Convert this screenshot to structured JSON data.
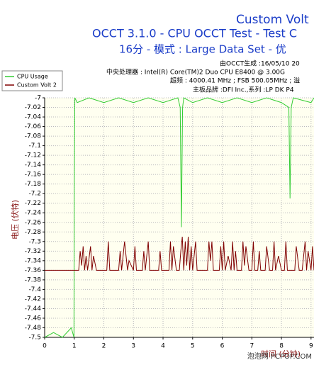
{
  "chart_data": {
    "type": "line",
    "title": "Custom Volt",
    "subtitle": "OCCT 3.1.0 - CPU OCCT Test - Test C",
    "subtitle2": "16分 - 模式 : Large Data Set - 优",
    "annotations": [
      "由OCCT生成 :16/05/10 20",
      "中央处理器 : Intel(R) Core(TM)2 Duo CPU E8400 @ 3.00G",
      "超频 : 4000.41 MHz ; FSB 500.05MHz ; 溢",
      "主板品牌 :DFI Inc.,系列 :LP DK P4"
    ],
    "ylabel": "电压 (伏特)",
    "xlabel": "时间 (分钟)",
    "watermark": "泡泡网 PCPOP.COM",
    "xlim": [
      0,
      9.1
    ],
    "ylim": [
      -7.5,
      -7
    ],
    "xticks": [
      0,
      1,
      2,
      3,
      4,
      5,
      6,
      7,
      8,
      9
    ],
    "yticks": [
      -7,
      -7.02,
      -7.04,
      -7.06,
      -7.08,
      -7.1,
      -7.12,
      -7.14,
      -7.16,
      -7.18,
      -7.2,
      -7.22,
      -7.24,
      -7.26,
      -7.28,
      -7.3,
      -7.32,
      -7.34,
      -7.36,
      -7.38,
      -7.4,
      -7.42,
      -7.44,
      -7.46,
      -7.48,
      -7.5
    ],
    "grid": true,
    "legend": "upper-left",
    "series": [
      {
        "name": "CPU Usage",
        "color": "#33cc33",
        "x": [
          0,
          0.3,
          0.6,
          0.9,
          0.99,
          1.0,
          1.02,
          1.1,
          1.5,
          2.0,
          2.5,
          3.0,
          3.5,
          4.0,
          4.5,
          4.58,
          4.62,
          4.66,
          4.7,
          5.0,
          5.5,
          6.0,
          6.5,
          7.0,
          7.5,
          8.0,
          8.25,
          8.29,
          8.33,
          8.4,
          9.0,
          9.1
        ],
        "values": [
          -7.5,
          -7.49,
          -7.5,
          -7.48,
          -7.5,
          -7.2,
          -7.0,
          -7.01,
          -7.0,
          -7.01,
          -7.0,
          -7.01,
          -7.0,
          -7.01,
          -7.0,
          -7.02,
          -7.27,
          -7.02,
          -7.0,
          -7.01,
          -7.0,
          -7.01,
          -7.0,
          -7.01,
          -7.0,
          -7.01,
          -7.02,
          -7.21,
          -7.02,
          -7.0,
          -7.01,
          -7.0
        ]
      },
      {
        "name": "Custom Volt 2",
        "color": "#800000",
        "x": [
          0,
          1.15,
          1.2,
          1.25,
          1.3,
          1.35,
          1.4,
          1.45,
          1.55,
          1.6,
          1.65,
          1.75,
          2.1,
          2.15,
          2.2,
          2.5,
          2.55,
          2.6,
          2.7,
          2.8,
          2.85,
          3.0,
          3.05,
          3.1,
          3.3,
          3.35,
          3.4,
          3.5,
          3.55,
          3.85,
          3.9,
          3.95,
          4.2,
          4.25,
          4.3,
          4.35,
          4.45,
          4.55,
          4.6,
          4.65,
          4.7,
          4.75,
          4.8,
          4.85,
          4.9,
          4.95,
          5.0,
          5.1,
          5.15,
          5.2,
          5.5,
          5.55,
          5.6,
          5.65,
          5.7,
          5.9,
          5.95,
          6.0,
          6.05,
          6.1,
          6.2,
          6.3,
          6.35,
          6.4,
          6.45,
          6.5,
          6.65,
          6.7,
          6.75,
          6.8,
          6.9,
          7.0,
          7.05,
          7.1,
          7.2,
          7.25,
          7.3,
          7.45,
          7.5,
          7.6,
          7.7,
          7.75,
          7.8,
          7.9,
          8.0,
          8.1,
          8.15,
          8.2,
          8.45,
          8.5,
          8.6,
          8.7,
          8.8,
          8.85,
          8.9,
          9.0,
          9.05,
          9.1
        ],
        "values": [
          -7.36,
          -7.36,
          -7.32,
          -7.35,
          -7.31,
          -7.36,
          -7.33,
          -7.36,
          -7.31,
          -7.36,
          -7.33,
          -7.36,
          -7.36,
          -7.3,
          -7.36,
          -7.36,
          -7.32,
          -7.36,
          -7.3,
          -7.36,
          -7.34,
          -7.36,
          -7.31,
          -7.36,
          -7.36,
          -7.32,
          -7.36,
          -7.3,
          -7.36,
          -7.36,
          -7.32,
          -7.36,
          -7.36,
          -7.3,
          -7.36,
          -7.31,
          -7.36,
          -7.36,
          -7.32,
          -7.29,
          -7.36,
          -7.3,
          -7.35,
          -7.29,
          -7.36,
          -7.31,
          -7.36,
          -7.3,
          -7.36,
          -7.36,
          -7.36,
          -7.3,
          -7.34,
          -7.3,
          -7.36,
          -7.36,
          -7.31,
          -7.36,
          -7.3,
          -7.36,
          -7.33,
          -7.36,
          -7.3,
          -7.36,
          -7.32,
          -7.36,
          -7.36,
          -7.3,
          -7.35,
          -7.31,
          -7.36,
          -7.36,
          -7.3,
          -7.36,
          -7.36,
          -7.32,
          -7.36,
          -7.36,
          -7.31,
          -7.36,
          -7.36,
          -7.3,
          -7.36,
          -7.33,
          -7.36,
          -7.36,
          -7.3,
          -7.36,
          -7.36,
          -7.31,
          -7.36,
          -7.36,
          -7.3,
          -7.36,
          -7.32,
          -7.36,
          -7.31,
          -7.36
        ]
      }
    ]
  }
}
